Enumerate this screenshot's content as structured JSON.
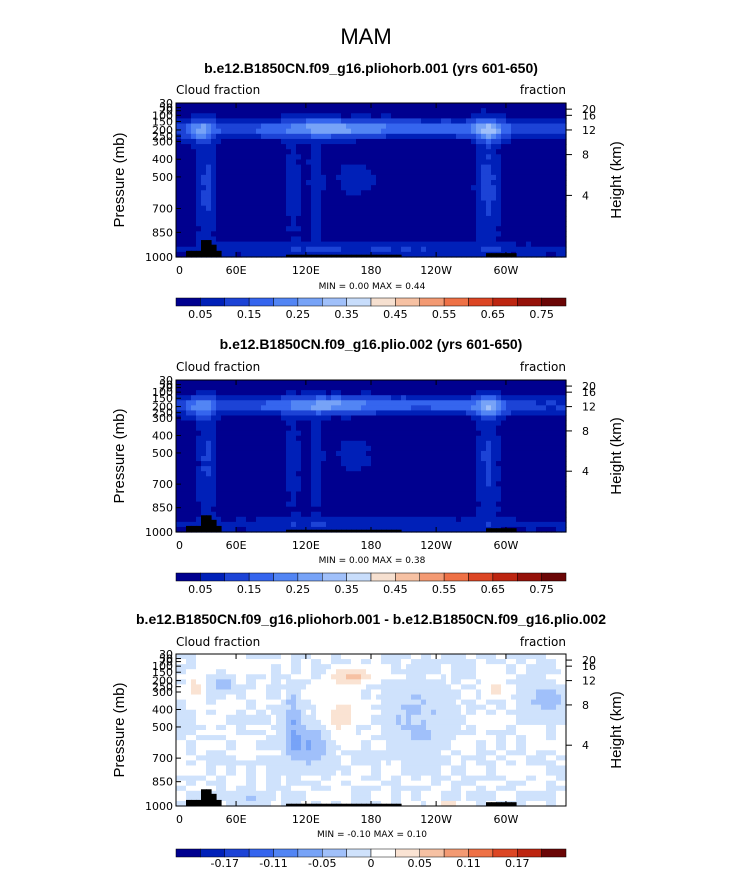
{
  "figure": {
    "title": "MAM"
  },
  "chart_data": [
    {
      "type": "heatmap",
      "title": "b.e12.B1850CN.f09_g16.pliohorb.001 (yrs 601-650)",
      "left_label": "Cloud fraction",
      "right_label": "fraction",
      "ylabel": "Pressure (mb)",
      "ylabel_right": "Height (km)",
      "x_ticks": [
        "0",
        "60E",
        "120E",
        "180",
        "120W",
        "60W"
      ],
      "y_ticks": [
        "30",
        "50",
        "70",
        "100",
        "150",
        "200",
        "250",
        "300",
        "400",
        "500",
        "700",
        "850",
        "1000"
      ],
      "height_ticks": [
        "20",
        "16",
        "12",
        "8",
        "4"
      ],
      "min_max": "MIN =    0.00   MAX =    0.44",
      "min": 0.0,
      "max": 0.44,
      "colorbar_labels": [
        "0.05",
        "0.15",
        "0.25",
        "0.35",
        "0.45",
        "0.55",
        "0.65",
        "0.75"
      ],
      "colorbar_colors": [
        "#00008f",
        "#0020b8",
        "#1c43d6",
        "#3565ee",
        "#5285f4",
        "#77a3f7",
        "#a0c0fa",
        "#c8ddfb",
        "#f6e0d0",
        "#f6c1a3",
        "#f39a73",
        "#ee7146",
        "#dc4624",
        "#bd2510",
        "#951109",
        "#6b0606"
      ]
    },
    {
      "type": "heatmap",
      "title": "b.e12.B1850CN.f09_g16.plio.002 (yrs 601-650)",
      "left_label": "Cloud fraction",
      "right_label": "fraction",
      "ylabel": "Pressure (mb)",
      "ylabel_right": "Height (km)",
      "x_ticks": [
        "0",
        "60E",
        "120E",
        "180",
        "120W",
        "60W"
      ],
      "y_ticks": [
        "30",
        "50",
        "70",
        "100",
        "150",
        "200",
        "250",
        "300",
        "400",
        "500",
        "700",
        "850",
        "1000"
      ],
      "height_ticks": [
        "20",
        "16",
        "12",
        "8",
        "4"
      ],
      "min_max": "MIN =    0.00   MAX =    0.38",
      "min": 0.0,
      "max": 0.38,
      "colorbar_labels": [
        "0.05",
        "0.15",
        "0.25",
        "0.35",
        "0.45",
        "0.55",
        "0.65",
        "0.75"
      ],
      "colorbar_colors": [
        "#00008f",
        "#0020b8",
        "#1c43d6",
        "#3565ee",
        "#5285f4",
        "#77a3f7",
        "#a0c0fa",
        "#c8ddfb",
        "#f6e0d0",
        "#f6c1a3",
        "#f39a73",
        "#ee7146",
        "#dc4624",
        "#bd2510",
        "#951109",
        "#6b0606"
      ]
    },
    {
      "type": "heatmap",
      "title": "b.e12.B1850CN.f09_g16.pliohorb.001 - b.e12.B1850CN.f09_g16.plio.002",
      "left_label": "Cloud fraction",
      "right_label": "fraction",
      "ylabel": "Pressure (mb)",
      "ylabel_right": "Height (km)",
      "x_ticks": [
        "0",
        "60E",
        "120E",
        "180",
        "120W",
        "60W"
      ],
      "y_ticks": [
        "30",
        "50",
        "70",
        "100",
        "150",
        "200",
        "250",
        "300",
        "400",
        "500",
        "700",
        "850",
        "1000"
      ],
      "height_ticks": [
        "20",
        "16",
        "12",
        "8",
        "4"
      ],
      "min_max": "MIN =   -0.10   MAX =    0.10",
      "min": -0.1,
      "max": 0.1,
      "colorbar_labels": [
        "-0.17",
        "-0.11",
        "-0.05",
        "0",
        "0.05",
        "0.11",
        "0.17"
      ],
      "colorbar_colors": [
        "#00008f",
        "#0020b8",
        "#1c43d6",
        "#3565ee",
        "#5285f4",
        "#77a3f7",
        "#a0c0fa",
        "#cfe2fc",
        "#ffffff",
        "#fae3d3",
        "#f6c1a3",
        "#f39a73",
        "#ee7146",
        "#dc4624",
        "#bd2510",
        "#6b0606"
      ]
    }
  ]
}
